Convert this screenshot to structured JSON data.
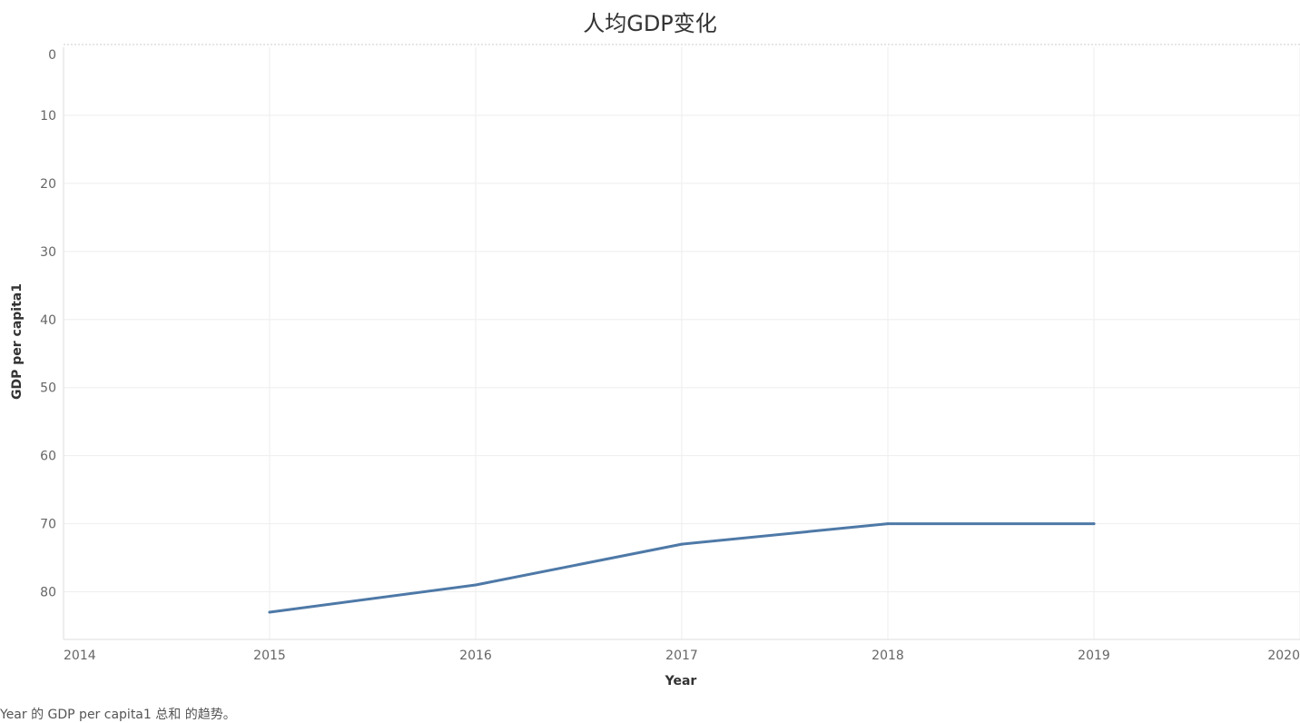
{
  "chart_data": {
    "type": "line",
    "title": "人均GDP变化",
    "xlabel": "Year",
    "ylabel": "GDP per capita1",
    "x_ticks": [
      "2014",
      "2015",
      "2016",
      "2017",
      "2018",
      "2019",
      "2020"
    ],
    "y_ticks": [
      "0",
      "10",
      "20",
      "30",
      "40",
      "50",
      "60",
      "70",
      "80"
    ],
    "xlim": [
      2014,
      2020
    ],
    "ylim": [
      0,
      87
    ],
    "y_reversed": true,
    "grid": true,
    "line_color": "#4e79a7",
    "series": [
      {
        "x": [
          2015,
          2016,
          2017,
          2018,
          2019
        ],
        "values": [
          83,
          79,
          73,
          70,
          70
        ]
      }
    ]
  },
  "caption": "Year 的 GDP per capita1 总和 的趋势。"
}
